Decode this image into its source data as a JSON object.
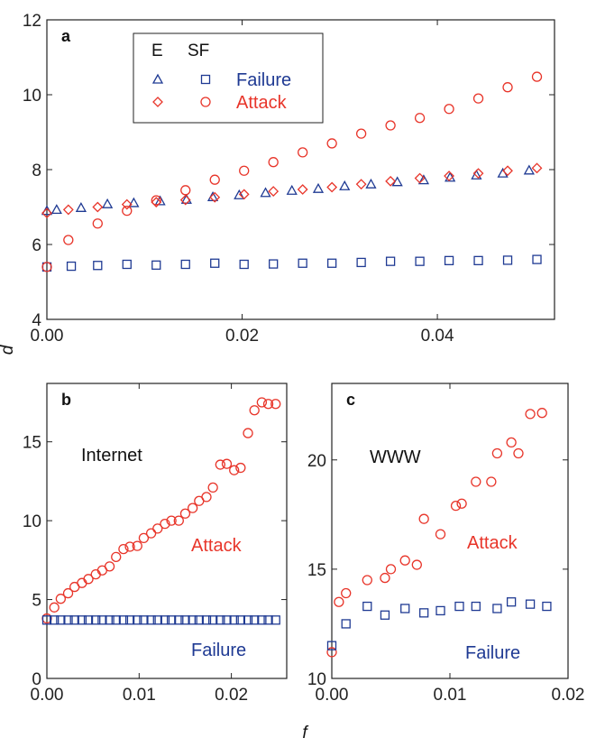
{
  "colors": {
    "attack": "#e8352a",
    "failure": "#1f3a93",
    "axis": "#222222"
  },
  "chart_data": [
    {
      "panel": "a",
      "type": "scatter",
      "xlabel": "",
      "ylabel": "d",
      "xlim": [
        0,
        0.052
      ],
      "ylim": [
        4,
        12
      ],
      "xticks": [
        0.0,
        0.02,
        0.04
      ],
      "xtick_labels": [
        "0.00",
        "0.02",
        "0.04"
      ],
      "yticks": [
        4,
        6,
        8,
        10,
        12
      ],
      "ytick_labels": [
        "4",
        "6",
        "8",
        "10",
        "12"
      ],
      "legend": {
        "placement": "top-left",
        "headers": [
          "E",
          "SF"
        ],
        "rows": [
          {
            "label": "Failure",
            "e_marker": "triangle",
            "sf_marker": "square"
          },
          {
            "label": "Attack",
            "e_marker": "diamond",
            "sf_marker": "circle"
          }
        ]
      },
      "series": [
        {
          "network": "E",
          "mode": "Failure",
          "marker": "triangle",
          "color": "#1f3a93",
          "x": [
            0.0,
            0.001,
            0.0035,
            0.0062,
            0.0089,
            0.0116,
            0.0143,
            0.017,
            0.0197,
            0.0224,
            0.0251,
            0.0278,
            0.0305,
            0.0332,
            0.0359,
            0.0386,
            0.0413,
            0.044,
            0.0467,
            0.0494
          ],
          "y": [
            6.9,
            6.93,
            6.98,
            7.08,
            7.11,
            7.16,
            7.2,
            7.27,
            7.32,
            7.38,
            7.44,
            7.49,
            7.56,
            7.61,
            7.67,
            7.72,
            7.79,
            7.85,
            7.9,
            7.98
          ]
        },
        {
          "network": "E",
          "mode": "Attack",
          "marker": "diamond",
          "color": "#e8352a",
          "x": [
            0.0,
            0.0022,
            0.0052,
            0.0082,
            0.0112,
            0.0142,
            0.0172,
            0.0202,
            0.0232,
            0.0262,
            0.0292,
            0.0322,
            0.0352,
            0.0382,
            0.0412,
            0.0442,
            0.0472,
            0.0502
          ],
          "y": [
            6.84,
            6.93,
            7.0,
            7.07,
            7.13,
            7.19,
            7.26,
            7.34,
            7.42,
            7.47,
            7.53,
            7.61,
            7.69,
            7.77,
            7.83,
            7.9,
            7.97,
            8.04
          ]
        },
        {
          "network": "SF",
          "mode": "Failure",
          "marker": "square",
          "color": "#1f3a93",
          "x": [
            0.0,
            0.0025,
            0.0052,
            0.0082,
            0.0112,
            0.0142,
            0.0172,
            0.0202,
            0.0232,
            0.0262,
            0.0292,
            0.0322,
            0.0352,
            0.0382,
            0.0412,
            0.0442,
            0.0472,
            0.0502
          ],
          "y": [
            5.4,
            5.42,
            5.44,
            5.47,
            5.45,
            5.47,
            5.5,
            5.47,
            5.48,
            5.5,
            5.5,
            5.52,
            5.55,
            5.55,
            5.57,
            5.57,
            5.58,
            5.6
          ]
        },
        {
          "network": "SF",
          "mode": "Attack",
          "marker": "circle",
          "color": "#e8352a",
          "x": [
            0.0,
            0.0022,
            0.0052,
            0.0082,
            0.0112,
            0.0142,
            0.0172,
            0.0202,
            0.0232,
            0.0262,
            0.0292,
            0.0322,
            0.0352,
            0.0382,
            0.0412,
            0.0442,
            0.0472,
            0.0502
          ],
          "y": [
            5.4,
            6.12,
            6.56,
            6.9,
            7.18,
            7.45,
            7.73,
            7.97,
            8.2,
            8.46,
            8.7,
            8.96,
            9.18,
            9.38,
            9.62,
            9.9,
            10.2,
            10.48
          ]
        }
      ]
    },
    {
      "panel": "b",
      "type": "scatter",
      "annotation": "Internet",
      "xlim": [
        0,
        0.026
      ],
      "ylim": [
        0,
        18.7
      ],
      "xticks": [
        0.0,
        0.01,
        0.02
      ],
      "xtick_labels": [
        "0.00",
        "0.01",
        "0.02"
      ],
      "yticks": [
        0,
        5,
        10,
        15
      ],
      "ytick_labels": [
        "0",
        "5",
        "10",
        "15"
      ],
      "series_labels": {
        "attack": "Attack",
        "failure": "Failure"
      },
      "series": [
        {
          "mode": "Attack",
          "marker": "circle",
          "color": "#e8352a",
          "x": [
            0.0,
            0.0008,
            0.0015,
            0.0023,
            0.003,
            0.0038,
            0.0045,
            0.0053,
            0.006,
            0.0068,
            0.0075,
            0.0083,
            0.009,
            0.0098,
            0.0105,
            0.0113,
            0.012,
            0.0128,
            0.0135,
            0.0143,
            0.015,
            0.0158,
            0.0165,
            0.0173,
            0.018,
            0.0188,
            0.0195,
            0.0203,
            0.021,
            0.0218,
            0.0225,
            0.0233,
            0.024,
            0.0248
          ],
          "y": [
            3.8,
            4.5,
            5.05,
            5.4,
            5.8,
            6.05,
            6.3,
            6.6,
            6.85,
            7.1,
            7.7,
            8.2,
            8.35,
            8.4,
            8.9,
            9.2,
            9.5,
            9.8,
            10.0,
            10.0,
            10.45,
            10.8,
            11.25,
            11.5,
            12.1,
            13.55,
            13.6,
            13.2,
            13.35,
            15.55,
            17.0,
            17.5,
            17.4,
            17.4
          ]
        },
        {
          "mode": "Failure",
          "marker": "square",
          "color": "#1f3a93",
          "x": [
            0.0,
            0.0008,
            0.0015,
            0.0023,
            0.003,
            0.0038,
            0.0045,
            0.0053,
            0.006,
            0.0068,
            0.0075,
            0.0083,
            0.009,
            0.0098,
            0.0105,
            0.0113,
            0.012,
            0.0128,
            0.0135,
            0.0143,
            0.015,
            0.0158,
            0.0165,
            0.0173,
            0.018,
            0.0188,
            0.0195,
            0.0203,
            0.021,
            0.0218,
            0.0225,
            0.0233,
            0.024,
            0.0248
          ],
          "y": [
            3.7,
            3.7,
            3.7,
            3.7,
            3.7,
            3.7,
            3.7,
            3.7,
            3.7,
            3.7,
            3.7,
            3.7,
            3.7,
            3.7,
            3.7,
            3.7,
            3.7,
            3.7,
            3.7,
            3.7,
            3.7,
            3.7,
            3.7,
            3.7,
            3.7,
            3.7,
            3.7,
            3.7,
            3.7,
            3.7,
            3.7,
            3.7,
            3.7,
            3.7
          ]
        }
      ]
    },
    {
      "panel": "c",
      "type": "scatter",
      "annotation": "WWW",
      "xlim": [
        0,
        0.02
      ],
      "ylim": [
        10,
        23.5
      ],
      "xticks": [
        0.0,
        0.01,
        0.02
      ],
      "xtick_labels": [
        "0.00",
        "0.01",
        "0.02"
      ],
      "yticks": [
        10,
        15,
        20
      ],
      "ytick_labels": [
        "10",
        "15",
        "20"
      ],
      "xlabel_shared": "f",
      "series_labels": {
        "attack": "Attack",
        "failure": "Failure"
      },
      "series": [
        {
          "mode": "Attack",
          "marker": "circle",
          "color": "#e8352a",
          "x": [
            0.0,
            0.0006,
            0.0012,
            0.003,
            0.0045,
            0.005,
            0.0062,
            0.0072,
            0.0078,
            0.0092,
            0.0105,
            0.011,
            0.0122,
            0.0135,
            0.014,
            0.0152,
            0.0158,
            0.0168,
            0.0178
          ],
          "y": [
            11.2,
            13.5,
            13.9,
            14.5,
            14.6,
            15.0,
            15.4,
            15.2,
            17.3,
            16.6,
            17.9,
            18.0,
            19.0,
            19.0,
            20.3,
            20.8,
            20.3,
            22.1,
            22.15
          ]
        },
        {
          "mode": "Failure",
          "marker": "square",
          "color": "#1f3a93",
          "x": [
            0.0,
            0.0012,
            0.003,
            0.0045,
            0.0062,
            0.0078,
            0.0092,
            0.0108,
            0.0122,
            0.014,
            0.0152,
            0.0168,
            0.0182
          ],
          "y": [
            11.5,
            12.5,
            13.3,
            12.9,
            13.2,
            13.0,
            13.1,
            13.3,
            13.3,
            13.2,
            13.5,
            13.4,
            13.3
          ]
        }
      ]
    }
  ]
}
